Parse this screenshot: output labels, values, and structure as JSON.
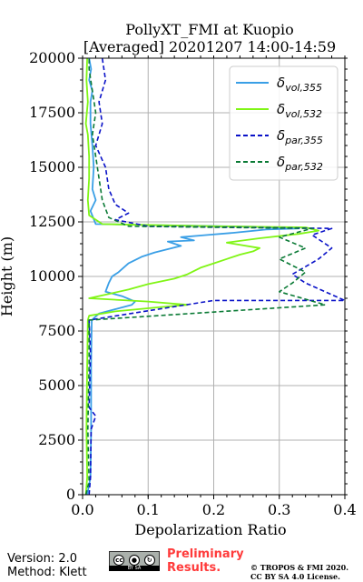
{
  "chart_data": {
    "type": "line",
    "title": "PollyXT_FMI at Kuopio",
    "subtitle": "[Averaged] 20201207 14:00-14:59",
    "xlabel": "Depolarization Ratio",
    "ylabel": "Height (m)",
    "xlim": [
      0,
      0.4
    ],
    "ylim": [
      0,
      20000
    ],
    "xticks": [
      "0.0",
      "0.1",
      "0.2",
      "0.3",
      "0.4"
    ],
    "yticks": [
      "0",
      "2500",
      "5000",
      "7500",
      "10000",
      "12500",
      "15000",
      "17500",
      "20000"
    ],
    "grid": true,
    "legend_position": "top-right",
    "series": [
      {
        "name": "δvol,355",
        "label_main": "δ",
        "label_sub": "vol,355",
        "color": "#3a9fe6",
        "style": "solid",
        "points": [
          [
            0.007,
            0
          ],
          [
            0.012,
            800
          ],
          [
            0.013,
            3000
          ],
          [
            0.013,
            6000
          ],
          [
            0.014,
            8000
          ],
          [
            0.025,
            8300
          ],
          [
            0.05,
            8500
          ],
          [
            0.075,
            8700
          ],
          [
            0.08,
            8850
          ],
          [
            0.06,
            9100
          ],
          [
            0.035,
            9300
          ],
          [
            0.04,
            9700
          ],
          [
            0.045,
            10000
          ],
          [
            0.055,
            10200
          ],
          [
            0.07,
            10600
          ],
          [
            0.09,
            10900
          ],
          [
            0.11,
            11100
          ],
          [
            0.13,
            11250
          ],
          [
            0.15,
            11400
          ],
          [
            0.13,
            11600
          ],
          [
            0.17,
            11650
          ],
          [
            0.15,
            11800
          ],
          [
            0.19,
            11900
          ],
          [
            0.23,
            12000
          ],
          [
            0.28,
            12150
          ],
          [
            0.33,
            12200
          ],
          [
            0.26,
            12280
          ],
          [
            0.12,
            12350
          ],
          [
            0.02,
            12400
          ],
          [
            0.012,
            13000
          ],
          [
            0.02,
            13500
          ],
          [
            0.015,
            14000
          ],
          [
            0.017,
            15000
          ],
          [
            0.015,
            16000
          ],
          [
            0.012,
            17000
          ],
          [
            0.012,
            18000
          ],
          [
            0.015,
            18500
          ],
          [
            0.01,
            19000
          ],
          [
            0.013,
            19500
          ],
          [
            0.01,
            20000
          ]
        ]
      },
      {
        "name": "δvol,532",
        "label_main": "δ",
        "label_sub": "vol,532",
        "color": "#80f515",
        "style": "solid",
        "points": [
          [
            0.005,
            0
          ],
          [
            0.007,
            800
          ],
          [
            0.006,
            3000
          ],
          [
            0.007,
            6000
          ],
          [
            0.008,
            8000
          ],
          [
            0.01,
            8200
          ],
          [
            0.05,
            8400
          ],
          [
            0.12,
            8600
          ],
          [
            0.16,
            8700
          ],
          [
            0.1,
            8850
          ],
          [
            0.01,
            9000
          ],
          [
            0.04,
            9200
          ],
          [
            0.07,
            9400
          ],
          [
            0.1,
            9650
          ],
          [
            0.14,
            9900
          ],
          [
            0.16,
            10100
          ],
          [
            0.18,
            10400
          ],
          [
            0.2,
            10600
          ],
          [
            0.22,
            10800
          ],
          [
            0.24,
            11000
          ],
          [
            0.26,
            11150
          ],
          [
            0.27,
            11300
          ],
          [
            0.22,
            11550
          ],
          [
            0.27,
            11750
          ],
          [
            0.33,
            11950
          ],
          [
            0.36,
            12100
          ],
          [
            0.34,
            12250
          ],
          [
            0.2,
            12300
          ],
          [
            0.03,
            12400
          ],
          [
            0.01,
            12800
          ],
          [
            0.008,
            13500
          ],
          [
            0.01,
            14500
          ],
          [
            0.01,
            15500
          ],
          [
            0.008,
            16500
          ],
          [
            0.005,
            17000
          ],
          [
            0.008,
            18000
          ],
          [
            0.006,
            19000
          ],
          [
            0.007,
            20000
          ]
        ]
      },
      {
        "name": "δpar,355",
        "label_main": "δ",
        "label_sub": "par,355",
        "color": "#0a12c8",
        "style": "dashed",
        "points": [
          [
            0.01,
            0
          ],
          [
            0.012,
            800
          ],
          [
            0.013,
            3000
          ],
          [
            0.02,
            3600
          ],
          [
            0.01,
            4000
          ],
          [
            0.012,
            6500
          ],
          [
            0.01,
            8000
          ],
          [
            0.2,
            8900
          ],
          [
            0.4,
            8900
          ],
          [
            0.34,
            9700
          ],
          [
            0.32,
            10100
          ],
          [
            0.36,
            10800
          ],
          [
            0.38,
            11300
          ],
          [
            0.35,
            11900
          ],
          [
            0.38,
            12200
          ],
          [
            0.1,
            12300
          ],
          [
            0.05,
            12600
          ],
          [
            0.07,
            12900
          ],
          [
            0.05,
            13300
          ],
          [
            0.04,
            14000
          ],
          [
            0.035,
            15000
          ],
          [
            0.02,
            16000
          ],
          [
            0.03,
            17000
          ],
          [
            0.025,
            18000
          ],
          [
            0.035,
            19000
          ],
          [
            0.03,
            20000
          ]
        ]
      },
      {
        "name": "δpar,532",
        "label_main": "δ",
        "label_sub": "par,532",
        "color": "#0a7a35",
        "style": "dashed",
        "points": [
          [
            0.005,
            0
          ],
          [
            0.01,
            600
          ],
          [
            0.008,
            3000
          ],
          [
            0.01,
            6000
          ],
          [
            0.01,
            8000
          ],
          [
            0.37,
            8700
          ],
          [
            0.3,
            9300
          ],
          [
            0.32,
            9700
          ],
          [
            0.34,
            10200
          ],
          [
            0.3,
            10800
          ],
          [
            0.34,
            11300
          ],
          [
            0.3,
            11800
          ],
          [
            0.35,
            12200
          ],
          [
            0.07,
            12300
          ],
          [
            0.04,
            12700
          ],
          [
            0.03,
            13500
          ],
          [
            0.025,
            14500
          ],
          [
            0.02,
            15500
          ],
          [
            0.015,
            16500
          ],
          [
            0.02,
            17500
          ],
          [
            0.015,
            18500
          ],
          [
            0.01,
            19500
          ],
          [
            0.01,
            20000
          ]
        ]
      }
    ]
  },
  "footer": {
    "version": "Version: 2.0",
    "method": "Method: Klett",
    "badge_cc": "cc",
    "badge_by": "BY",
    "badge_sa": "SA",
    "preliminary_line1": "Preliminary",
    "preliminary_line2": "Results.",
    "copyright_line1": "© TROPOS & FMI 2020.",
    "copyright_line2": "CC BY SA 4.0 License."
  }
}
